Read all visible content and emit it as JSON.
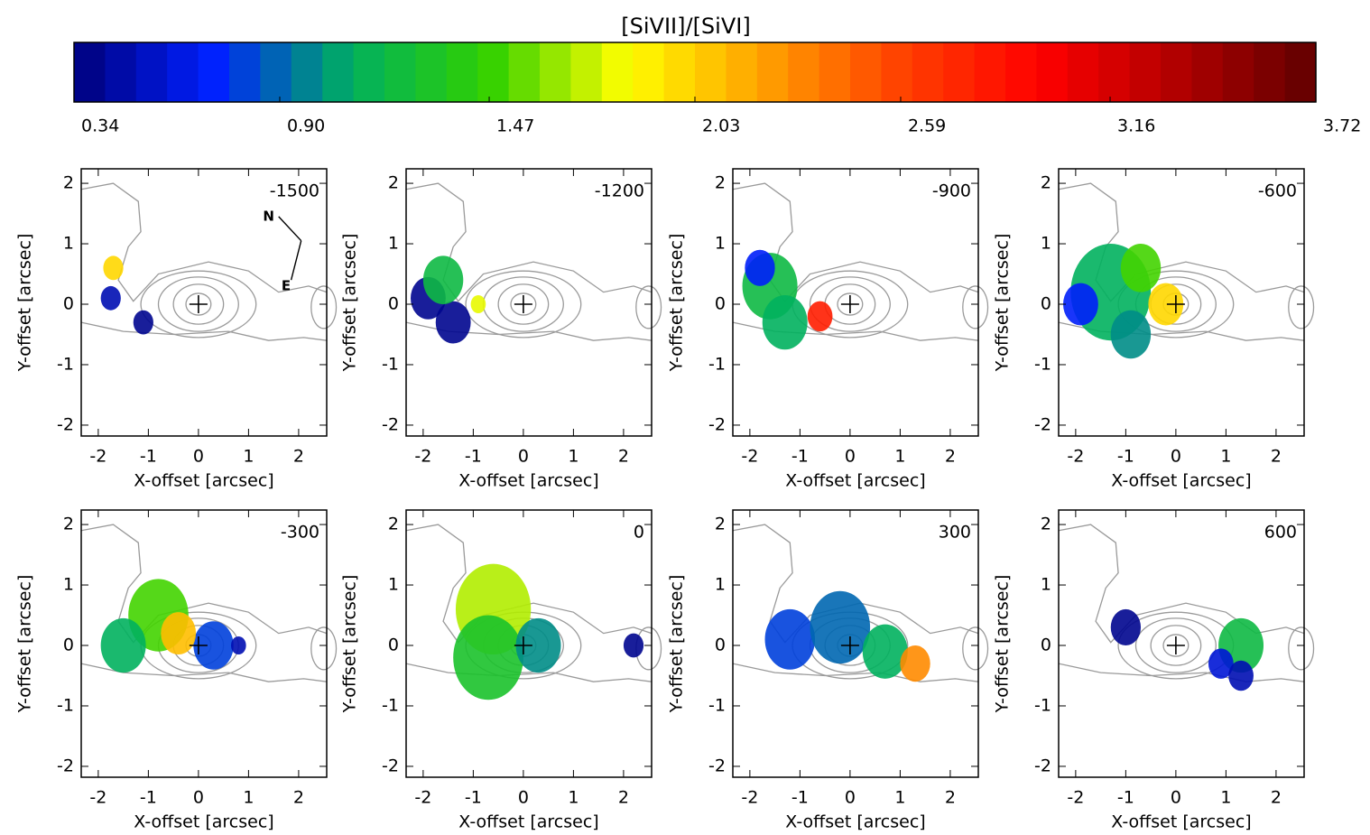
{
  "chart_data": {
    "type": "image-panels",
    "colorbar": {
      "title": "[SiVII]/[SiVI]",
      "lim": [
        0.34,
        3.72
      ],
      "ticks": [
        0.34,
        {
          "value": 0.9,
          "label": "0.90"
        },
        1.47,
        2.03,
        2.59,
        3.16,
        3.72
      ],
      "colormap": [
        "#00007a",
        "#0020ff",
        "#00b060",
        "#30d000",
        "#ffff00",
        "#ffa000",
        "#ff4000",
        "#ff0000",
        "#b00000",
        "#600000"
      ]
    },
    "xlabel": "X-offset [arcsec]",
    "ylabel": "Y-offset [arcsec]",
    "xlim": [
      -2.34,
      2.56
    ],
    "ylim": [
      -2.18,
      2.24
    ],
    "xticks": [
      -2,
      -1,
      0,
      1,
      2
    ],
    "yticks": [
      -2,
      -1,
      0,
      1,
      2
    ],
    "panels": [
      {
        "label": "-1500",
        "annotations": [
          "N",
          "E"
        ],
        "x": [
          -1.7,
          -1.75,
          -1.1
        ],
        "y": [
          0.6,
          0.1,
          -0.3
        ],
        "size": [
          0.2,
          0.2,
          0.2
        ],
        "values": [
          2.0,
          0.5,
          0.4
        ]
      },
      {
        "label": "-1200",
        "x": [
          -1.9,
          -1.4,
          -1.6,
          -0.9
        ],
        "y": [
          0.1,
          -0.3,
          0.4,
          0.0
        ],
        "size": [
          0.35,
          0.35,
          0.4,
          0.15
        ],
        "values": [
          0.4,
          0.4,
          1.2,
          1.8
        ]
      },
      {
        "label": "-900",
        "x": [
          -1.6,
          -1.3,
          -1.8,
          -0.6
        ],
        "y": [
          0.3,
          -0.3,
          0.6,
          -0.2
        ],
        "size": [
          0.55,
          0.45,
          0.3,
          0.25
        ],
        "values": [
          1.2,
          1.1,
          0.7,
          2.8
        ]
      },
      {
        "label": "-600",
        "x": [
          -1.3,
          -1.9,
          -0.9,
          -0.7,
          -0.2
        ],
        "y": [
          0.2,
          0.0,
          -0.5,
          0.6,
          0.0
        ],
        "size": [
          0.8,
          0.35,
          0.4,
          0.4,
          0.35
        ],
        "values": [
          1.1,
          0.7,
          1.0,
          1.5,
          2.0
        ]
      },
      {
        "label": "-300",
        "x": [
          -0.8,
          -1.5,
          0.3,
          -0.4,
          0.8
        ],
        "y": [
          0.5,
          0.0,
          0.0,
          0.2,
          0.0
        ],
        "size": [
          0.6,
          0.45,
          0.4,
          0.35,
          0.15
        ],
        "values": [
          1.5,
          1.1,
          0.8,
          2.1,
          0.5
        ]
      },
      {
        "label": "0",
        "x": [
          -0.6,
          -0.7,
          0.3,
          2.2
        ],
        "y": [
          0.6,
          -0.2,
          0.0,
          0.0
        ],
        "size": [
          0.75,
          0.7,
          0.45,
          0.2
        ],
        "values": [
          1.7,
          1.3,
          1.0,
          0.4
        ]
      },
      {
        "label": "300",
        "x": [
          -1.2,
          -0.2,
          0.7,
          1.3
        ],
        "y": [
          0.1,
          0.3,
          -0.1,
          -0.3
        ],
        "size": [
          0.5,
          0.6,
          0.45,
          0.3
        ],
        "values": [
          0.8,
          0.9,
          1.1,
          2.3
        ]
      },
      {
        "label": "600",
        "x": [
          -1.0,
          1.3,
          0.9,
          1.3
        ],
        "y": [
          0.3,
          0.0,
          -0.3,
          -0.5
        ],
        "size": [
          0.3,
          0.45,
          0.25,
          0.25
        ],
        "values": [
          0.4,
          1.2,
          0.6,
          0.5
        ]
      }
    ]
  }
}
